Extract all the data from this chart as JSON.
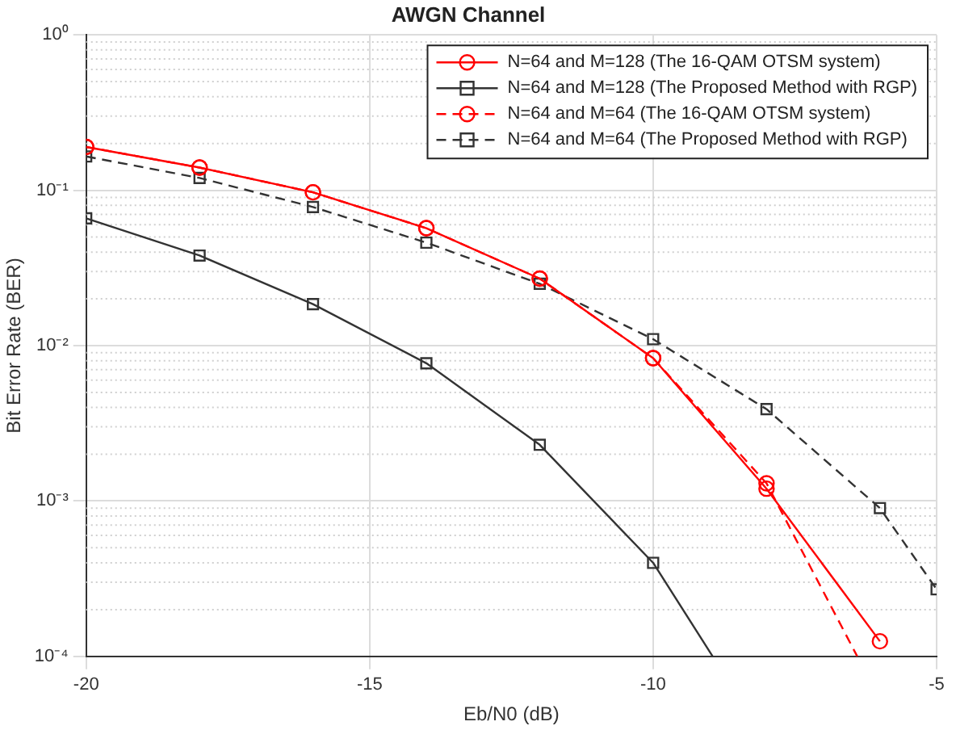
{
  "chart_data": {
    "type": "line",
    "title": "AWGN Channel",
    "xlabel": "Eb/N0 (dB)",
    "ylabel": "Bit Error Rate (BER)",
    "log": "y",
    "xlim": [
      -20,
      -5
    ],
    "xticks": [
      -20,
      -15,
      -10,
      -5
    ],
    "ylim": [
      0.0001,
      1
    ],
    "yticks": [
      {
        "value": 0.0001,
        "label": "10⁻⁴"
      },
      {
        "value": 0.001,
        "label": "10⁻³"
      },
      {
        "value": 0.01,
        "label": "10⁻²"
      },
      {
        "value": 0.1,
        "label": "10⁻¹"
      },
      {
        "value": 1,
        "label": "10⁰"
      }
    ],
    "grid": true,
    "legend": "top right",
    "series": [
      {
        "name": "N=64 and M=128 (The 16-QAM OTSM system)",
        "color": "#ff0000",
        "marker": "circle",
        "line_style": "solid",
        "x": [
          -20,
          -18,
          -16,
          -14,
          -12,
          -10,
          -8,
          -6
        ],
        "values": [
          0.19,
          0.14,
          0.097,
          0.057,
          0.027,
          0.0083,
          0.0012,
          0.000125
        ]
      },
      {
        "name": "N=64 and M=128 (The Proposed Method with RGP)",
        "color": "#333333",
        "marker": "square",
        "line_style": "solid",
        "x": [
          -20,
          -18,
          -16,
          -14,
          -12,
          -10,
          -8.95
        ],
        "values": [
          0.066,
          0.038,
          0.0185,
          0.0077,
          0.0023,
          0.0004,
          0.0001
        ]
      },
      {
        "name": "N=64 and M=64 (The 16-QAM OTSM system)",
        "color": "#ff0000",
        "marker": "circle",
        "line_style": "dashed",
        "x": [
          -20,
          -18,
          -16,
          -14,
          -12,
          -10,
          -8,
          -6.4
        ],
        "values": [
          0.19,
          0.14,
          0.097,
          0.057,
          0.027,
          0.0083,
          0.0013,
          0.0001
        ]
      },
      {
        "name": "N=64 and M=64 (The Proposed Method with RGP)",
        "color": "#333333",
        "marker": "square",
        "line_style": "dashed",
        "x": [
          -20,
          -18,
          -16,
          -14,
          -12,
          -10,
          -8,
          -6,
          -5
        ],
        "values": [
          0.165,
          0.12,
          0.078,
          0.046,
          0.025,
          0.011,
          0.0039,
          0.0009,
          0.00027
        ]
      }
    ]
  }
}
